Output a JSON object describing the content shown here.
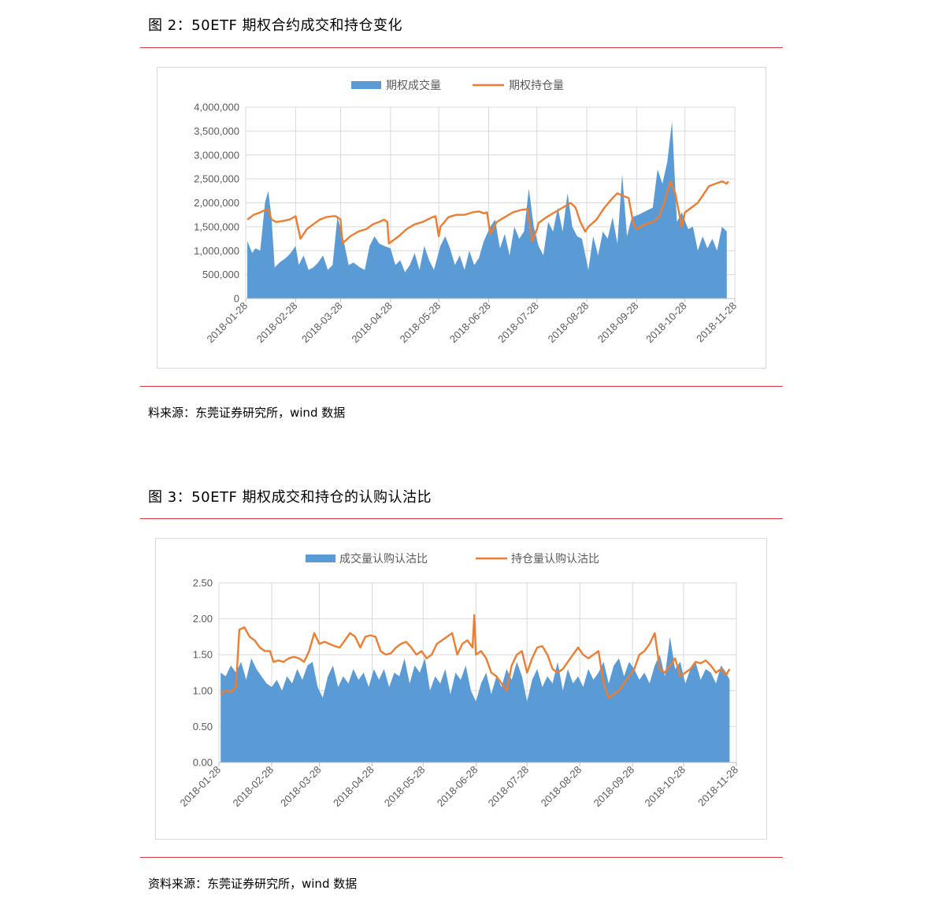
{
  "figure2": {
    "title": "图 2：50ETF 期权合约成交和持仓变化",
    "source": "料来源：东莞证券研究所，wind 数据"
  },
  "figure3": {
    "title": "图 3：50ETF 期权成交和持仓的认购认沽比",
    "source": "资料来源：东莞证券研究所，wind 数据"
  },
  "colors": {
    "area": "#5b9bd5",
    "line": "#ed7d31",
    "grid": "#d9d9d9",
    "rule": "#d9363e"
  },
  "chart_data": [
    {
      "type": "area",
      "title": "",
      "legend_position": "top",
      "x_ticks": [
        "2018-01-28",
        "2018-02-28",
        "2018-03-28",
        "2018-04-28",
        "2018-05-28",
        "2018-06-28",
        "2018-07-28",
        "2018-08-28",
        "2018-09-28",
        "2018-10-28",
        "2018-11-28"
      ],
      "y_ticks": [
        "0",
        "500,000",
        "1,000,000",
        "1,500,000",
        "2,000,000",
        "2,500,000",
        "3,000,000",
        "3,500,000",
        "4,000,000"
      ],
      "ylim": [
        0,
        4000000
      ],
      "grid": true,
      "series": [
        {
          "name": "期权成交量",
          "kind": "area",
          "x": [
            "2018-01-29",
            "2018-02-01",
            "2018-02-03",
            "2018-02-06",
            "2018-02-09",
            "2018-02-11",
            "2018-02-13",
            "2018-02-15",
            "2018-02-18",
            "2018-02-22",
            "2018-02-25",
            "2018-02-28",
            "2018-03-02",
            "2018-03-05",
            "2018-03-08",
            "2018-03-11",
            "2018-03-14",
            "2018-03-17",
            "2018-03-20",
            "2018-03-23",
            "2018-03-26",
            "2018-03-29",
            "2018-04-02",
            "2018-04-05",
            "2018-04-09",
            "2018-04-12",
            "2018-04-15",
            "2018-04-18",
            "2018-04-21",
            "2018-04-24",
            "2018-04-28",
            "2018-05-01",
            "2018-05-04",
            "2018-05-07",
            "2018-05-10",
            "2018-05-13",
            "2018-05-16",
            "2018-05-19",
            "2018-05-22",
            "2018-05-25",
            "2018-05-29",
            "2018-06-01",
            "2018-06-04",
            "2018-06-07",
            "2018-06-10",
            "2018-06-13",
            "2018-06-16",
            "2018-06-19",
            "2018-06-22",
            "2018-06-25",
            "2018-06-29",
            "2018-07-02",
            "2018-07-05",
            "2018-07-08",
            "2018-07-11",
            "2018-07-14",
            "2018-07-17",
            "2018-07-20",
            "2018-07-23",
            "2018-07-26",
            "2018-07-29",
            "2018-08-01",
            "2018-08-04",
            "2018-08-07",
            "2018-08-10",
            "2018-08-13",
            "2018-08-16",
            "2018-08-19",
            "2018-08-22",
            "2018-08-25",
            "2018-08-29",
            "2018-09-01",
            "2018-09-04",
            "2018-09-07",
            "2018-09-10",
            "2018-09-13",
            "2018-09-16",
            "2018-09-19",
            "2018-09-22",
            "2018-09-25",
            "2018-09-29",
            "2018-10-02",
            "2018-10-05",
            "2018-10-08",
            "2018-10-11",
            "2018-10-14",
            "2018-10-17",
            "2018-10-20",
            "2018-10-23",
            "2018-10-26",
            "2018-10-30",
            "2018-11-02",
            "2018-11-05",
            "2018-11-08",
            "2018-11-11",
            "2018-11-14",
            "2018-11-17",
            "2018-11-20",
            "2018-11-23"
          ],
          "values": [
            1200000,
            950000,
            1050000,
            1000000,
            2000000,
            2250000,
            1700000,
            650000,
            750000,
            850000,
            950000,
            1100000,
            700000,
            900000,
            600000,
            650000,
            750000,
            900000,
            600000,
            700000,
            1700000,
            1350000,
            700000,
            750000,
            650000,
            600000,
            1100000,
            1300000,
            1150000,
            1100000,
            1050000,
            700000,
            800000,
            550000,
            700000,
            950000,
            600000,
            1100000,
            800000,
            600000,
            1100000,
            1300000,
            1050000,
            700000,
            900000,
            600000,
            1000000,
            700000,
            850000,
            1200000,
            1500000,
            1650000,
            1050000,
            1350000,
            900000,
            1500000,
            1250000,
            1400000,
            2300000,
            1500000,
            1100000,
            900000,
            1600000,
            1400000,
            1900000,
            1400000,
            2200000,
            1500000,
            1300000,
            1250000,
            600000,
            1300000,
            900000,
            1400000,
            1250000,
            1700000,
            1150000,
            2600000,
            1300000,
            1700000,
            1750000,
            1800000,
            1850000,
            1900000,
            2700000,
            2400000,
            2850000,
            3700000,
            1600000,
            1800000,
            1450000,
            1500000,
            1000000,
            1300000,
            1050000,
            1250000,
            1000000,
            1500000,
            1400000
          ]
        },
        {
          "name": "期权持仓量",
          "kind": "line",
          "x": [
            "2018-01-29",
            "2018-02-02",
            "2018-02-06",
            "2018-02-09",
            "2018-02-11",
            "2018-02-13",
            "2018-02-16",
            "2018-02-20",
            "2018-02-24",
            "2018-02-26",
            "2018-02-28",
            "2018-03-03",
            "2018-03-07",
            "2018-03-11",
            "2018-03-15",
            "2018-03-19",
            "2018-03-23",
            "2018-03-25",
            "2018-03-28",
            "2018-03-29",
            "2018-04-03",
            "2018-04-08",
            "2018-04-13",
            "2018-04-17",
            "2018-04-21",
            "2018-04-24",
            "2018-04-26",
            "2018-04-27",
            "2018-05-03",
            "2018-05-08",
            "2018-05-13",
            "2018-05-18",
            "2018-05-21",
            "2018-05-24",
            "2018-05-26",
            "2018-05-28",
            "2018-05-29",
            "2018-06-03",
            "2018-06-08",
            "2018-06-13",
            "2018-06-18",
            "2018-06-22",
            "2018-06-25",
            "2018-06-27",
            "2018-06-29",
            "2018-07-03",
            "2018-07-08",
            "2018-07-13",
            "2018-07-18",
            "2018-07-22",
            "2018-07-25",
            "2018-07-28",
            "2018-07-29",
            "2018-08-03",
            "2018-08-08",
            "2018-08-13",
            "2018-08-18",
            "2018-08-21",
            "2018-08-24",
            "2018-08-27",
            "2018-08-29",
            "2018-09-03",
            "2018-09-08",
            "2018-09-13",
            "2018-09-16",
            "2018-09-19",
            "2018-09-23",
            "2018-09-26",
            "2018-09-28",
            "2018-10-03",
            "2018-10-08",
            "2018-10-12",
            "2018-10-16",
            "2018-10-19",
            "2018-10-22",
            "2018-10-26",
            "2018-10-28",
            "2018-11-01",
            "2018-11-05",
            "2018-11-09",
            "2018-11-12",
            "2018-11-16",
            "2018-11-20",
            "2018-11-23",
            "2018-11-24"
          ],
          "values": [
            1650000,
            1750000,
            1800000,
            1850000,
            1870000,
            1650000,
            1600000,
            1620000,
            1650000,
            1680000,
            1720000,
            1250000,
            1450000,
            1550000,
            1650000,
            1700000,
            1720000,
            1720000,
            1650000,
            1150000,
            1300000,
            1400000,
            1450000,
            1550000,
            1600000,
            1650000,
            1600000,
            1150000,
            1300000,
            1450000,
            1550000,
            1600000,
            1650000,
            1700000,
            1720000,
            1300000,
            1500000,
            1700000,
            1750000,
            1750000,
            1800000,
            1820000,
            1780000,
            1800000,
            1350000,
            1600000,
            1700000,
            1800000,
            1850000,
            1870000,
            1200000,
            1450000,
            1580000,
            1700000,
            1800000,
            1900000,
            2000000,
            1900000,
            1600000,
            1400000,
            1500000,
            1650000,
            1900000,
            2100000,
            2200000,
            2150000,
            2100000,
            1550000,
            1450000,
            1550000,
            1600000,
            1700000,
            2100000,
            2450000,
            2200000,
            1500000,
            1800000,
            1900000,
            2000000,
            2200000,
            2350000,
            2400000,
            2450000,
            2400000,
            2450000
          ]
        }
      ]
    },
    {
      "type": "area",
      "title": "",
      "legend_position": "top",
      "x_ticks": [
        "2018-01-28",
        "2018-02-28",
        "2018-03-28",
        "2018-04-28",
        "2018-05-28",
        "2018-06-28",
        "2018-07-28",
        "2018-08-28",
        "2018-09-28",
        "2018-10-28",
        "2018-11-28"
      ],
      "y_ticks": [
        "0.00",
        "0.50",
        "1.00",
        "1.50",
        "2.00",
        "2.50"
      ],
      "ylim": [
        0,
        2.5
      ],
      "grid": true,
      "series": [
        {
          "name": "成交量认购认沽比",
          "kind": "area",
          "x": [
            "2018-01-29",
            "2018-02-01",
            "2018-02-04",
            "2018-02-07",
            "2018-02-10",
            "2018-02-13",
            "2018-02-16",
            "2018-02-19",
            "2018-02-22",
            "2018-02-25",
            "2018-02-28",
            "2018-03-03",
            "2018-03-06",
            "2018-03-09",
            "2018-03-12",
            "2018-03-15",
            "2018-03-18",
            "2018-03-21",
            "2018-03-24",
            "2018-03-27",
            "2018-03-30",
            "2018-04-02",
            "2018-04-05",
            "2018-04-08",
            "2018-04-11",
            "2018-04-14",
            "2018-04-17",
            "2018-04-20",
            "2018-04-23",
            "2018-04-26",
            "2018-04-29",
            "2018-05-02",
            "2018-05-05",
            "2018-05-08",
            "2018-05-11",
            "2018-05-14",
            "2018-05-17",
            "2018-05-20",
            "2018-05-23",
            "2018-05-26",
            "2018-05-29",
            "2018-06-01",
            "2018-06-04",
            "2018-06-07",
            "2018-06-10",
            "2018-06-13",
            "2018-06-16",
            "2018-06-19",
            "2018-06-22",
            "2018-06-25",
            "2018-06-28",
            "2018-07-01",
            "2018-07-04",
            "2018-07-07",
            "2018-07-10",
            "2018-07-13",
            "2018-07-16",
            "2018-07-19",
            "2018-07-22",
            "2018-07-25",
            "2018-07-28",
            "2018-07-31",
            "2018-08-03",
            "2018-08-06",
            "2018-08-09",
            "2018-08-12",
            "2018-08-15",
            "2018-08-18",
            "2018-08-21",
            "2018-08-24",
            "2018-08-27",
            "2018-08-30",
            "2018-09-02",
            "2018-09-05",
            "2018-09-08",
            "2018-09-11",
            "2018-09-14",
            "2018-09-17",
            "2018-09-20",
            "2018-09-23",
            "2018-09-26",
            "2018-09-29",
            "2018-10-02",
            "2018-10-05",
            "2018-10-08",
            "2018-10-11",
            "2018-10-14",
            "2018-10-17",
            "2018-10-20",
            "2018-10-23",
            "2018-10-26",
            "2018-10-29",
            "2018-11-01",
            "2018-11-04",
            "2018-11-07",
            "2018-11-10",
            "2018-11-13",
            "2018-11-16",
            "2018-11-19",
            "2018-11-22",
            "2018-11-24"
          ],
          "values": [
            1.25,
            1.2,
            1.35,
            1.25,
            1.4,
            1.15,
            1.45,
            1.3,
            1.2,
            1.1,
            1.05,
            1.15,
            1.0,
            1.2,
            1.1,
            1.3,
            1.15,
            1.35,
            1.4,
            1.05,
            0.9,
            1.2,
            1.35,
            1.05,
            1.2,
            1.1,
            1.3,
            1.15,
            1.25,
            1.05,
            1.3,
            1.15,
            1.3,
            1.05,
            1.25,
            1.2,
            1.45,
            1.1,
            1.35,
            1.25,
            1.45,
            1.0,
            1.2,
            1.1,
            1.3,
            0.95,
            1.25,
            1.15,
            1.35,
            1.0,
            0.85,
            1.1,
            1.25,
            0.95,
            1.2,
            1.05,
            1.3,
            1.15,
            1.4,
            1.2,
            0.85,
            1.15,
            1.3,
            1.05,
            1.2,
            1.1,
            1.4,
            1.0,
            1.3,
            1.1,
            1.2,
            1.05,
            1.3,
            1.15,
            1.25,
            1.4,
            1.1,
            1.35,
            1.45,
            1.2,
            1.4,
            1.3,
            1.15,
            1.25,
            1.1,
            1.35,
            1.5,
            1.2,
            1.75,
            1.3,
            1.4,
            1.1,
            1.3,
            1.4,
            1.15,
            1.3,
            1.25,
            1.1,
            1.35,
            1.25,
            1.15
          ]
        },
        {
          "name": "持仓量认购认沽比",
          "kind": "line",
          "x": [
            "2018-01-29",
            "2018-02-01",
            "2018-02-04",
            "2018-02-07",
            "2018-02-09",
            "2018-02-12",
            "2018-02-15",
            "2018-02-18",
            "2018-02-21",
            "2018-02-24",
            "2018-02-27",
            "2018-03-01",
            "2018-03-04",
            "2018-03-07",
            "2018-03-10",
            "2018-03-13",
            "2018-03-16",
            "2018-03-19",
            "2018-03-22",
            "2018-03-25",
            "2018-03-28",
            "2018-03-31",
            "2018-04-03",
            "2018-04-06",
            "2018-04-09",
            "2018-04-12",
            "2018-04-15",
            "2018-04-18",
            "2018-04-21",
            "2018-04-24",
            "2018-04-27",
            "2018-04-30",
            "2018-05-03",
            "2018-05-06",
            "2018-05-09",
            "2018-05-12",
            "2018-05-15",
            "2018-05-18",
            "2018-05-21",
            "2018-05-24",
            "2018-05-27",
            "2018-05-30",
            "2018-06-02",
            "2018-06-05",
            "2018-06-08",
            "2018-06-11",
            "2018-06-14",
            "2018-06-17",
            "2018-06-20",
            "2018-06-23",
            "2018-06-26",
            "2018-06-27",
            "2018-06-28",
            "2018-07-01",
            "2018-07-04",
            "2018-07-07",
            "2018-07-10",
            "2018-07-13",
            "2018-07-16",
            "2018-07-19",
            "2018-07-22",
            "2018-07-25",
            "2018-07-28",
            "2018-07-31",
            "2018-08-03",
            "2018-08-06",
            "2018-08-09",
            "2018-08-12",
            "2018-08-15",
            "2018-08-18",
            "2018-08-21",
            "2018-08-24",
            "2018-08-27",
            "2018-08-30",
            "2018-09-02",
            "2018-09-05",
            "2018-09-08",
            "2018-09-11",
            "2018-09-14",
            "2018-09-17",
            "2018-09-20",
            "2018-09-23",
            "2018-09-26",
            "2018-09-29",
            "2018-10-02",
            "2018-10-05",
            "2018-10-08",
            "2018-10-11",
            "2018-10-14",
            "2018-10-17",
            "2018-10-20",
            "2018-10-23",
            "2018-10-26",
            "2018-10-29",
            "2018-11-01",
            "2018-11-04",
            "2018-11-07",
            "2018-11-10",
            "2018-11-13",
            "2018-11-16",
            "2018-11-19",
            "2018-11-22",
            "2018-11-24"
          ],
          "values": [
            0.95,
            1.0,
            0.98,
            1.05,
            1.85,
            1.88,
            1.75,
            1.7,
            1.6,
            1.55,
            1.55,
            1.4,
            1.42,
            1.4,
            1.45,
            1.47,
            1.45,
            1.4,
            1.55,
            1.8,
            1.65,
            1.68,
            1.65,
            1.62,
            1.6,
            1.7,
            1.8,
            1.75,
            1.6,
            1.75,
            1.77,
            1.75,
            1.55,
            1.5,
            1.52,
            1.6,
            1.65,
            1.68,
            1.6,
            1.5,
            1.55,
            1.45,
            1.5,
            1.65,
            1.7,
            1.75,
            1.8,
            1.5,
            1.65,
            1.7,
            1.6,
            2.05,
            1.5,
            1.55,
            1.45,
            1.25,
            1.2,
            1.1,
            1.0,
            1.35,
            1.5,
            1.55,
            1.25,
            1.45,
            1.6,
            1.62,
            1.5,
            1.3,
            1.25,
            1.3,
            1.4,
            1.5,
            1.6,
            1.5,
            1.45,
            1.5,
            1.55,
            1.1,
            0.9,
            0.95,
            1.0,
            1.1,
            1.2,
            1.3,
            1.5,
            1.55,
            1.65,
            1.8,
            1.3,
            1.25,
            1.35,
            1.45,
            1.2,
            1.25,
            1.3,
            1.4,
            1.38,
            1.42,
            1.35,
            1.25,
            1.3,
            1.22,
            1.3
          ]
        }
      ]
    }
  ]
}
